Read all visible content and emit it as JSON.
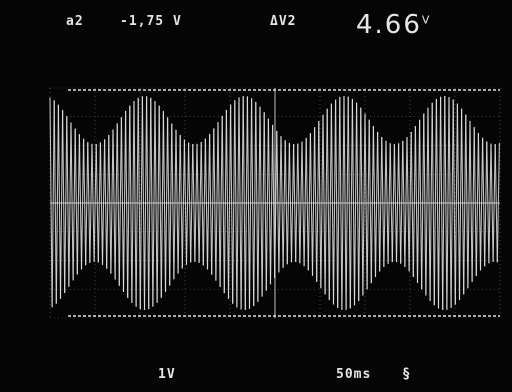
{
  "scope": {
    "cursor_label": "a2",
    "cursor_value": "-1,75 V",
    "delta_label": "ΔV2",
    "delta_value": "4.66",
    "delta_unit": "V",
    "volts_per_div": "1V",
    "time_per_div": "50ms",
    "trigger_symbol": "§"
  },
  "display": {
    "trace_color": "#e2e2e2",
    "grid_color": "#bfbfbf",
    "background_color": "#050505",
    "graticule": {
      "h_divisions": 10,
      "v_divisions": 8
    },
    "signal": {
      "type": "amplitude-modulated",
      "envelope_cycles": 4.5,
      "modulation_depth": 0.45
    }
  }
}
